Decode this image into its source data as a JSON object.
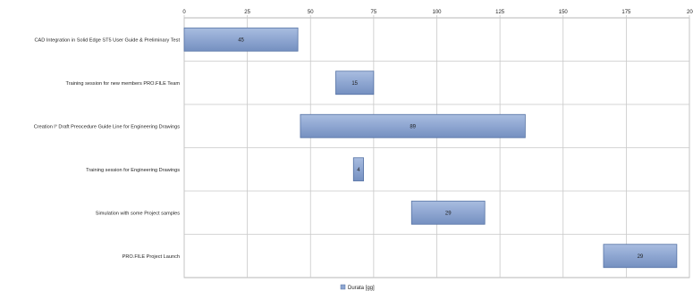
{
  "chart_data": {
    "type": "bar",
    "orientation": "horizontal",
    "stacked_floating": true,
    "categories": [
      "CAD Integration in Solid Edge ST5 User Guide & Preliminary Test",
      "Training session for new members PRO.FILE Team",
      "Creation l° Draft Preocedure Guide Line for Engineering  Drawings",
      "Training session for Engineering  Drawings",
      "Simulation with some Project samples",
      "PRO.FILE Project Launch"
    ],
    "series": [
      {
        "role": "start",
        "values": [
          0,
          60,
          46,
          67,
          90,
          166
        ]
      },
      {
        "name": "Durata [gg]",
        "values": [
          45,
          15,
          89,
          4,
          29,
          29
        ]
      }
    ],
    "data_labels": [
      "45",
      "15",
      "89",
      "4",
      "29",
      "29"
    ],
    "x_ticks": [
      "0",
      "25",
      "50",
      "75",
      "100",
      "125",
      "150",
      "175",
      "200"
    ],
    "xlim": [
      0,
      200
    ],
    "x_axis_position": "top",
    "grid": true,
    "legend": {
      "position": "bottom",
      "entries": [
        "Durata [gg]"
      ]
    },
    "colors": {
      "bar_fill": "#8ea6d1",
      "bar_edge": "#5572a4",
      "grid": "#c8c8c8",
      "axis": "#a6a6a6",
      "text": "#1f1f1f"
    }
  }
}
